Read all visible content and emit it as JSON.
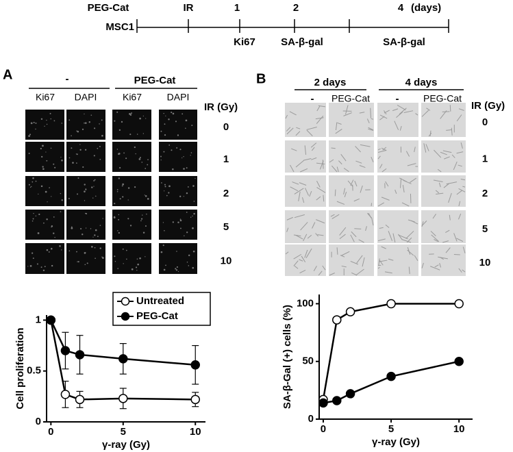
{
  "timeline": {
    "treatment": "PEG-Cat",
    "irradiation": "IR",
    "days": [
      "1",
      "2",
      "4"
    ],
    "unit": "(days)",
    "cell_line": "MSC1",
    "assays": [
      "Ki67",
      "SA-β-gal",
      "SA-β-gal"
    ]
  },
  "panel_a": {
    "label": "A",
    "groups": [
      "-",
      "PEG-Cat"
    ],
    "columns": [
      "Ki67",
      "DAPI",
      "Ki67",
      "DAPI"
    ],
    "row_header": "IR (Gy)",
    "rows": [
      "0",
      "1",
      "2",
      "5",
      "10"
    ]
  },
  "panel_b": {
    "label": "B",
    "groups": [
      "2 days",
      "4 days"
    ],
    "columns": [
      "-",
      "PEG-Cat",
      "-",
      "PEG-Cat"
    ],
    "row_header": "IR (Gy)",
    "rows": [
      "0",
      "1",
      "2",
      "5",
      "10"
    ]
  },
  "chart_data": [
    {
      "type": "line",
      "x_label": "γ-ray (Gy)",
      "y_label": "Cell proliferation",
      "x": [
        0,
        1,
        2,
        5,
        10
      ],
      "xlim": [
        -0.3,
        10.7
      ],
      "xticks": [
        0,
        5,
        10
      ],
      "ylim": [
        0,
        1.05
      ],
      "yticks": [
        0,
        0.5,
        1
      ],
      "legend": "upper right",
      "series": [
        {
          "name": "Untreated",
          "color": "#000000",
          "marker_fill": "#ffffff",
          "values": [
            1,
            0.27,
            0.22,
            0.23,
            0.22
          ],
          "errors": [
            0,
            0.13,
            0.08,
            0.1,
            0.07
          ]
        },
        {
          "name": "PEG-Cat",
          "color": "#000000",
          "marker_fill": "#000000",
          "values": [
            1,
            0.7,
            0.66,
            0.62,
            0.56
          ],
          "errors": [
            0,
            0.18,
            0.19,
            0.15,
            0.19
          ]
        }
      ]
    },
    {
      "type": "line",
      "x_label": "γ-ray (Gy)",
      "y_label": "SA-β-Gal (+) cells (%)",
      "x": [
        0,
        1,
        2,
        5,
        10
      ],
      "xlim": [
        -0.3,
        11
      ],
      "xticks": [
        0,
        5,
        10
      ],
      "ylim": [
        0,
        108
      ],
      "yticks": [
        0,
        50,
        100
      ],
      "series": [
        {
          "name": "Untreated",
          "color": "#000000",
          "marker_fill": "#ffffff",
          "values": [
            17,
            86,
            93,
            100,
            100
          ]
        },
        {
          "name": "PEG-Cat",
          "color": "#000000",
          "marker_fill": "#000000",
          "values": [
            14,
            16,
            22,
            37,
            50
          ]
        }
      ]
    }
  ]
}
